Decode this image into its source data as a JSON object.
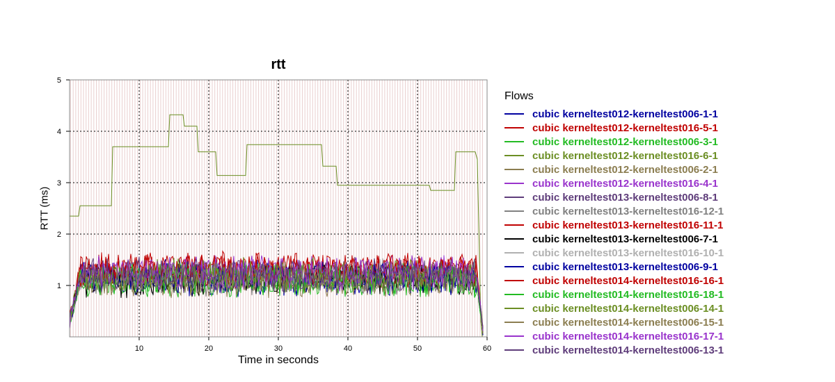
{
  "chart_data": {
    "type": "line",
    "title": "rtt",
    "xlabel": "Time in seconds",
    "ylabel": "RTT (ms)",
    "xlim": [
      0,
      60
    ],
    "ylim": [
      0,
      5
    ],
    "x_ticks": [
      10,
      20,
      30,
      40,
      50,
      60
    ],
    "y_ticks": [
      1,
      2,
      3,
      4,
      5
    ],
    "grid": true,
    "legend_title": "Flows",
    "legend_position": "right",
    "background_stripes_color": "#d8a8a8",
    "series": [
      {
        "name": "cubic kerneltest012-kerneltest006-1-1",
        "color": "#0000a0",
        "base": 1.15
      },
      {
        "name": "cubic kerneltest012-kerneltest016-5-1",
        "color": "#c00000",
        "base": 1.3
      },
      {
        "name": "cubic kerneltest012-kerneltest006-3-1",
        "color": "#22bb22",
        "base": 1.1
      },
      {
        "name": "cubic kerneltest012-kerneltest016-6-1",
        "color": "#6b8e23",
        "base": 1.2,
        "profile": [
          [
            0,
            2.35
          ],
          [
            1.3,
            2.35
          ],
          [
            1.5,
            2.55
          ],
          [
            6,
            2.55
          ],
          [
            6.2,
            3.7
          ],
          [
            14.2,
            3.7
          ],
          [
            14.4,
            4.32
          ],
          [
            16.3,
            4.32
          ],
          [
            16.5,
            4.1
          ],
          [
            18.3,
            4.1
          ],
          [
            18.5,
            3.6
          ],
          [
            21,
            3.6
          ],
          [
            21.2,
            3.14
          ],
          [
            25.3,
            3.14
          ],
          [
            25.5,
            3.74
          ],
          [
            36.2,
            3.74
          ],
          [
            36.4,
            3.32
          ],
          [
            38.3,
            3.32
          ],
          [
            38.5,
            2.95
          ],
          [
            51.7,
            2.95
          ],
          [
            51.9,
            2.85
          ],
          [
            55.3,
            2.85
          ],
          [
            55.5,
            3.6
          ],
          [
            58.3,
            3.6
          ],
          [
            58.6,
            3.45
          ],
          [
            59.1,
            0.3
          ],
          [
            59.3,
            0
          ]
        ]
      },
      {
        "name": "cubic kerneltest012-kerneltest006-2-1",
        "color": "#8b7d50",
        "base": 1.1
      },
      {
        "name": "cubic kerneltest012-kerneltest016-4-1",
        "color": "#9933cc",
        "base": 1.25
      },
      {
        "name": "cubic kerneltest013-kerneltest006-8-1",
        "color": "#5e3c7a",
        "base": 1.2
      },
      {
        "name": "cubic kerneltest013-kerneltest016-12-1",
        "color": "#808080",
        "base": 1.15
      },
      {
        "name": "cubic kerneltest013-kerneltest016-11-1",
        "color": "#c00000",
        "base": 1.3
      },
      {
        "name": "cubic kerneltest013-kerneltest006-7-1",
        "color": "#000000",
        "base": 1.1
      },
      {
        "name": "cubic kerneltest013-kerneltest016-10-1",
        "color": "#b0b0b0",
        "base": 1.2
      },
      {
        "name": "cubic kerneltest013-kerneltest006-9-1",
        "color": "#0000a0",
        "base": 1.15
      },
      {
        "name": "cubic kerneltest014-kerneltest016-16-1",
        "color": "#c00000",
        "base": 1.3
      },
      {
        "name": "cubic kerneltest014-kerneltest016-18-1",
        "color": "#22bb22",
        "base": 1.1
      },
      {
        "name": "cubic kerneltest014-kerneltest006-14-1",
        "color": "#6b8e23",
        "base": 1.2
      },
      {
        "name": "cubic kerneltest014-kerneltest006-15-1",
        "color": "#8b7d50",
        "base": 1.1
      },
      {
        "name": "cubic kerneltest014-kerneltest016-17-1",
        "color": "#9933cc",
        "base": 1.25
      },
      {
        "name": "cubic kerneltest014-kerneltest006-13-1",
        "color": "#5e3c7a",
        "base": 1.2
      }
    ]
  }
}
